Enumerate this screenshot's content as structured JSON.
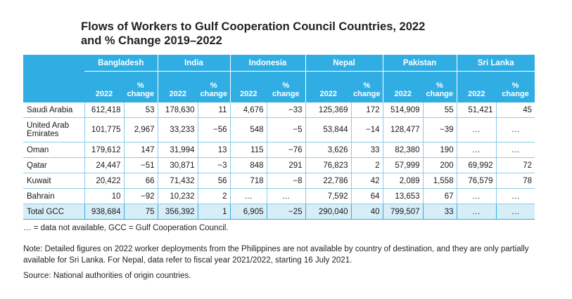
{
  "title": {
    "line1": "Flows of Workers to Gulf Cooperation Council Countries, 2022",
    "line2": "and % Change 2019–2022"
  },
  "table": {
    "countries": [
      "Bangladesh",
      "India",
      "Indonesia",
      "Nepal",
      "Pakistan",
      "Sri Lanka"
    ],
    "year_label": "2022",
    "pct_label_top": "%",
    "pct_label_bottom": "change",
    "rows": [
      {
        "label": "Saudi Arabia",
        "cells": [
          "612,418",
          "53",
          "178,630",
          "11",
          "4,676",
          "−33",
          "125,369",
          "172",
          "514,909",
          "55",
          "51,421",
          "45"
        ]
      },
      {
        "label": "United Arab Emirates",
        "cells": [
          "101,775",
          "2,967",
          "33,233",
          "−56",
          "548",
          "−5",
          "53,844",
          "−14",
          "128,477",
          "−39",
          "…",
          "…"
        ]
      },
      {
        "label": "Oman",
        "cells": [
          "179,612",
          "147",
          "31,994",
          "13",
          "115",
          "−76",
          "3,626",
          "33",
          "82,380",
          "190",
          "…",
          "…"
        ]
      },
      {
        "label": "Qatar",
        "cells": [
          "24,447",
          "−51",
          "30,871",
          "−3",
          "848",
          "291",
          "76,823",
          "2",
          "57,999",
          "200",
          "69,992",
          "72"
        ]
      },
      {
        "label": "Kuwait",
        "cells": [
          "20,422",
          "66",
          "71,432",
          "56",
          "718",
          "−8",
          "22,786",
          "42",
          "2,089",
          "1,558",
          "76,579",
          "78"
        ]
      },
      {
        "label": "Bahrain",
        "cells": [
          "10",
          "−92",
          "10,232",
          "2",
          "…",
          "…",
          "7,592",
          "64",
          "13,653",
          "67",
          "…",
          "…"
        ]
      },
      {
        "label": "Total GCC",
        "cells": [
          "938,684",
          "75",
          "356,392",
          "1",
          "6,905",
          "−25",
          "290,040",
          "40",
          "799,507",
          "33",
          "…",
          "…"
        ]
      }
    ]
  },
  "notes": {
    "abbrev": "… = data not available, GCC = Gulf Cooperation Council.",
    "note": "Note: Detailed figures on 2022 worker deployments from the Philippines are not available by country of destination, and they are only partially available for Sri Lanka. For Nepal, data refer to fiscal year 2021/2022, starting 16 July 2021.",
    "source": "Source: National authorities of origin countries."
  }
}
